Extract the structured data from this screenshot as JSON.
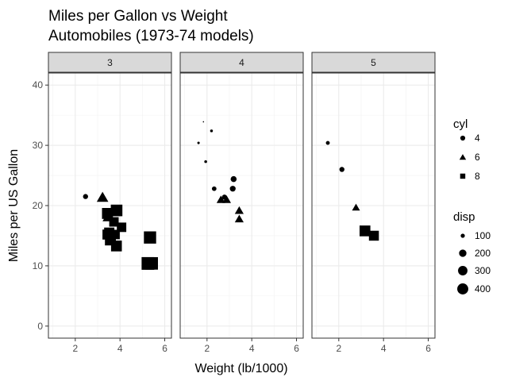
{
  "chart_data": {
    "type": "scatter",
    "title": "Miles per Gallon vs Weight",
    "subtitle": "Automobiles (1973-74 models)",
    "xlabel": "Weight (lb/1000)",
    "ylabel": "Miles per US Gallon",
    "xlim": [
      0.8,
      6.3
    ],
    "ylim": [
      -2,
      42
    ],
    "x_ticks": [
      2,
      4,
      6
    ],
    "y_ticks": [
      0,
      10,
      20,
      30,
      40
    ],
    "grid": true,
    "facet_variable": "gear",
    "facets": [
      "3",
      "4",
      "5"
    ],
    "legend": {
      "position": "right",
      "shape": {
        "title": "cyl",
        "entries": [
          {
            "label": "4",
            "marker": "circle"
          },
          {
            "label": "6",
            "marker": "triangle"
          },
          {
            "label": "8",
            "marker": "square"
          }
        ]
      },
      "size": {
        "title": "disp",
        "entries": [
          {
            "label": "100",
            "value": 100
          },
          {
            "label": "200",
            "value": 200
          },
          {
            "label": "300",
            "value": 300
          },
          {
            "label": "400",
            "value": 400
          }
        ]
      }
    },
    "panels": [
      {
        "facet": "3",
        "points": [
          {
            "wt": 2.46,
            "mpg": 21.5,
            "cyl": 4,
            "disp": 120
          },
          {
            "wt": 3.22,
            "mpg": 21.4,
            "cyl": 6,
            "disp": 258
          },
          {
            "wt": 3.46,
            "mpg": 18.1,
            "cyl": 6,
            "disp": 225
          },
          {
            "wt": 3.44,
            "mpg": 18.7,
            "cyl": 8,
            "disp": 360
          },
          {
            "wt": 3.57,
            "mpg": 14.3,
            "cyl": 8,
            "disp": 360
          },
          {
            "wt": 4.07,
            "mpg": 16.4,
            "cyl": 8,
            "disp": 276
          },
          {
            "wt": 3.73,
            "mpg": 17.3,
            "cyl": 8,
            "disp": 276
          },
          {
            "wt": 3.78,
            "mpg": 15.2,
            "cyl": 8,
            "disp": 276
          },
          {
            "wt": 5.25,
            "mpg": 10.4,
            "cyl": 8,
            "disp": 472
          },
          {
            "wt": 5.42,
            "mpg": 10.4,
            "cyl": 8,
            "disp": 460
          },
          {
            "wt": 5.34,
            "mpg": 14.7,
            "cyl": 8,
            "disp": 440
          },
          {
            "wt": 3.52,
            "mpg": 15.5,
            "cyl": 8,
            "disp": 318
          },
          {
            "wt": 3.44,
            "mpg": 15.2,
            "cyl": 8,
            "disp": 304
          },
          {
            "wt": 3.84,
            "mpg": 13.3,
            "cyl": 8,
            "disp": 350
          },
          {
            "wt": 3.85,
            "mpg": 19.2,
            "cyl": 8,
            "disp": 400
          }
        ]
      },
      {
        "facet": "4",
        "points": [
          {
            "wt": 2.62,
            "mpg": 21.0,
            "cyl": 6,
            "disp": 160
          },
          {
            "wt": 2.88,
            "mpg": 21.0,
            "cyl": 6,
            "disp": 160
          },
          {
            "wt": 2.32,
            "mpg": 22.8,
            "cyl": 4,
            "disp": 108
          },
          {
            "wt": 3.19,
            "mpg": 24.4,
            "cyl": 4,
            "disp": 147
          },
          {
            "wt": 3.15,
            "mpg": 22.8,
            "cyl": 4,
            "disp": 141
          },
          {
            "wt": 3.44,
            "mpg": 19.2,
            "cyl": 6,
            "disp": 168
          },
          {
            "wt": 3.44,
            "mpg": 17.8,
            "cyl": 6,
            "disp": 168
          },
          {
            "wt": 2.2,
            "mpg": 32.4,
            "cyl": 4,
            "disp": 79
          },
          {
            "wt": 1.62,
            "mpg": 30.4,
            "cyl": 4,
            "disp": 76
          },
          {
            "wt": 1.84,
            "mpg": 33.9,
            "cyl": 4,
            "disp": 71
          },
          {
            "wt": 1.94,
            "mpg": 27.3,
            "cyl": 4,
            "disp": 79
          },
          {
            "wt": 2.78,
            "mpg": 21.4,
            "cyl": 4,
            "disp": 121
          }
        ]
      },
      {
        "facet": "5",
        "points": [
          {
            "wt": 2.14,
            "mpg": 26.0,
            "cyl": 4,
            "disp": 120
          },
          {
            "wt": 1.51,
            "mpg": 30.4,
            "cyl": 4,
            "disp": 95
          },
          {
            "wt": 3.17,
            "mpg": 15.8,
            "cyl": 8,
            "disp": 351
          },
          {
            "wt": 2.77,
            "mpg": 19.7,
            "cyl": 6,
            "disp": 145
          },
          {
            "wt": 3.57,
            "mpg": 15.0,
            "cyl": 8,
            "disp": 301
          }
        ]
      }
    ]
  }
}
